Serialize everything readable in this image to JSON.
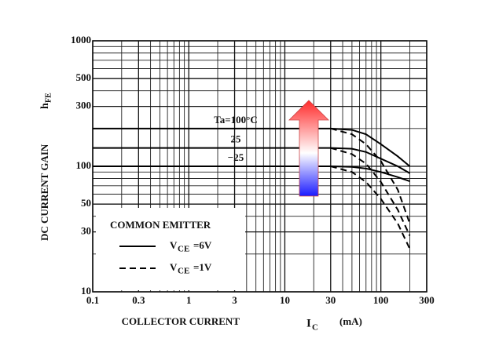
{
  "chart_data": {
    "type": "line",
    "x_scale": "log",
    "y_scale": "log",
    "x_label": {
      "text": "COLLECTOR CURRENT",
      "symbol": "I",
      "subscript": "C",
      "unit": "(mA)"
    },
    "y_label": {
      "text": "DC CURRENT GAIN",
      "symbol": "h",
      "subscript": "FE"
    },
    "xlim": [
      0.1,
      300
    ],
    "ylim": [
      10,
      1000
    ],
    "xticks": [
      0.1,
      0.3,
      1,
      3,
      10,
      30,
      100,
      300
    ],
    "yticks": [
      10,
      30,
      50,
      100,
      300,
      500,
      1000
    ],
    "x_grid": [
      0.2,
      0.4,
      0.5,
      0.6,
      0.7,
      0.8,
      0.9,
      2,
      4,
      5,
      6,
      7,
      8,
      9,
      20,
      40,
      50,
      60,
      70,
      80,
      90,
      200
    ],
    "y_grid": [
      20,
      40,
      60,
      70,
      80,
      90,
      200,
      400,
      600,
      700,
      800,
      900
    ],
    "x": [
      0.1,
      1,
      10,
      30,
      50,
      70,
      100,
      150,
      200
    ],
    "series": [
      {
        "color": "#000000",
        "dash": "solid",
        "values": [
          200,
          200,
          200,
          200,
          195,
          180,
          150,
          120,
          100
        ]
      },
      {
        "color": "#000000",
        "dash": "solid",
        "values": [
          140,
          140,
          140,
          140,
          138,
          130,
          115,
          100,
          88
        ]
      },
      {
        "color": "#000000",
        "dash": "solid",
        "values": [
          100,
          100,
          100,
          100,
          99,
          96,
          90,
          82,
          76
        ]
      },
      {
        "color": "#000000",
        "dash": "dashed",
        "values": [
          null,
          null,
          null,
          200,
          180,
          150,
          110,
          65,
          35
        ]
      },
      {
        "color": "#000000",
        "dash": "dashed",
        "values": [
          null,
          null,
          null,
          140,
          125,
          105,
          75,
          45,
          28
        ]
      },
      {
        "color": "#000000",
        "dash": "dashed",
        "values": [
          null,
          null,
          null,
          100,
          90,
          75,
          55,
          35,
          22
        ]
      }
    ],
    "curve_labels": [
      "Ta=100°C",
      "25",
      "−25"
    ],
    "legend": {
      "title": "COMMON EMITTER",
      "entries": [
        {
          "symbol": "V",
          "subscript": "CE",
          "suffix": "=6V",
          "dash": "solid"
        },
        {
          "symbol": "V",
          "subscript": "CE",
          "suffix": "=1V",
          "dash": "dashed"
        }
      ]
    }
  }
}
